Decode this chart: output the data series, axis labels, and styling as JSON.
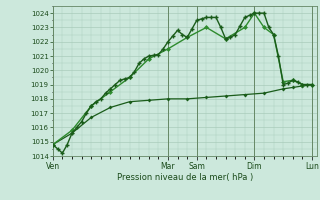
{
  "bg_color": "#cce8dc",
  "grid_color": "#aaccbb",
  "line_color_dark": "#1a5c1a",
  "line_color_mid": "#2e8b2e",
  "xlabel": "Pression niveau de la mer( hPa )",
  "ylim": [
    1014,
    1024.5
  ],
  "yticks": [
    1014,
    1015,
    1016,
    1017,
    1018,
    1019,
    1020,
    1021,
    1022,
    1023,
    1024
  ],
  "xtick_labels": [
    "Ven",
    "",
    "Mar",
    "Sam",
    "",
    "Dim",
    "",
    "Lun"
  ],
  "xtick_positions": [
    0,
    6,
    12,
    15,
    18,
    21,
    24,
    27
  ],
  "vline_positions": [
    0,
    12,
    15,
    21,
    27
  ],
  "series1_x": [
    0,
    0.5,
    1,
    1.5,
    2,
    2.5,
    3,
    3.5,
    4,
    4.5,
    5,
    5.5,
    6,
    6.5,
    7,
    7.5,
    8,
    8.5,
    9,
    9.5,
    10,
    10.5,
    11,
    11.5,
    12,
    12.5,
    13,
    13.5,
    14,
    14.5,
    15,
    15.5,
    16,
    16.5,
    17,
    17.5,
    18,
    18.5,
    19,
    19.5,
    20,
    20.5,
    21,
    21.5,
    22,
    22.5,
    23,
    23.5,
    24,
    24.5,
    25,
    25.5,
    26,
    26.5,
    27
  ],
  "series1_y": [
    1014.8,
    1014.5,
    1014.2,
    1014.8,
    1015.6,
    1016.0,
    1016.4,
    1017.0,
    1017.5,
    1017.8,
    1018.0,
    1018.4,
    1018.7,
    1019.0,
    1019.3,
    1019.4,
    1019.5,
    1019.9,
    1020.5,
    1020.8,
    1021.0,
    1021.05,
    1021.1,
    1021.5,
    1022.0,
    1022.4,
    1022.8,
    1022.5,
    1022.3,
    1022.9,
    1023.5,
    1023.6,
    1023.7,
    1023.7,
    1023.7,
    1023.0,
    1022.2,
    1022.3,
    1022.5,
    1023.1,
    1023.7,
    1023.85,
    1024.0,
    1024.0,
    1024.0,
    1023.0,
    1022.5,
    1021.0,
    1019.0,
    1019.1,
    1019.3,
    1019.2,
    1019.0,
    1019.0,
    1019.0
  ],
  "series2_x": [
    0,
    2,
    4,
    6,
    8,
    10,
    12,
    14,
    16,
    18,
    20,
    21,
    22,
    23,
    24,
    25,
    26,
    27
  ],
  "series2_y": [
    1014.8,
    1015.8,
    1017.5,
    1018.5,
    1019.5,
    1020.8,
    1021.5,
    1022.3,
    1023.0,
    1022.2,
    1023.0,
    1024.0,
    1023.0,
    1022.5,
    1019.2,
    1019.3,
    1019.0,
    1019.0
  ],
  "series3_x": [
    0,
    2,
    4,
    6,
    8,
    10,
    12,
    14,
    16,
    18,
    20,
    22,
    24,
    25,
    26,
    27
  ],
  "series3_y": [
    1014.8,
    1015.6,
    1016.7,
    1017.4,
    1017.8,
    1017.9,
    1018.0,
    1018.0,
    1018.1,
    1018.2,
    1018.3,
    1018.4,
    1018.7,
    1018.8,
    1018.9,
    1019.0
  ],
  "xlim": [
    0,
    27.5
  ]
}
